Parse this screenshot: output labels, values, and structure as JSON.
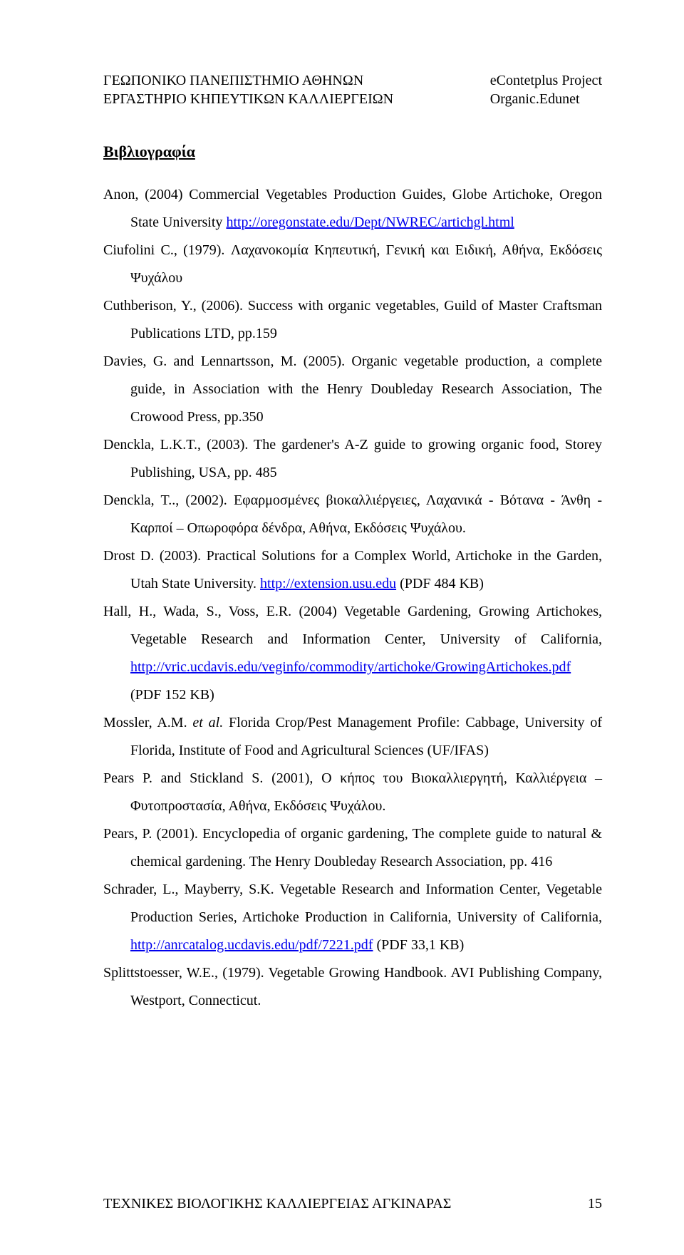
{
  "header": {
    "left1": "ΓΕΩΠΟΝΙΚΟ ΠΑΝΕΠΙΣΤΗΜΙΟ ΑΘΗΝΩΝ",
    "left2": "ΕΡΓΑΣΤΗΡΙΟ ΚΗΠΕΥΤΙΚΩΝ ΚΑΛΛΙΕΡΓΕΙΩΝ",
    "right1": "eContetplus Project",
    "right2": "Organic.Edunet"
  },
  "section_title": "Βιβλιογραφία",
  "refs": {
    "r1a": "Anon, (2004) Commercial Vegetables Production Guides, Globe Artichoke, Oregon State University ",
    "r1_link": "http://oregonstate.edu/Dept/NWREC/artichgl.html",
    "r2": "Ciufolini C., (1979). Λαχανοκομία Κηπευτική, Γενική και Ειδική, Αθήνα, Εκδόσεις Ψυχάλου",
    "r3": "Cuthberison, Y., (2006). Success with organic vegetables, Guild of Master Craftsman Publications LTD, pp.159",
    "r4": "Davies, G. and Lennartsson, M. (2005). Organic vegetable production, a complete guide, in Association with the Henry Doubleday Research Association, The Crowood Press, pp.350",
    "r5": "Denckla, L.K.T., (2003). The gardener's A-Z guide to growing organic food, Storey Publishing, USA, pp. 485",
    "r6": "Denckla, T.., (2002). Εφαρμοσμένες βιοκαλλιέργειες, Λαχανικά - Βότανα - Άνθη - Καρποί – Οπωροφόρα δένδρα, Αθήνα, Εκδόσεις Ψυχάλου.",
    "r7a": "Drost D. (2003). Practical Solutions for a Complex World, Artichoke in the Garden, Utah State University. ",
    "r7_link": "http://extension.usu.edu",
    "r7b": " (PDF 484 ΚΒ)",
    "r8a": "Hall, H., Wada, S., Voss, E.R. (2004) Vegetable Gardening, Growing Artichokes, Vegetable Research and Information Center, University of California, ",
    "r8_link": "http://vric.ucdavis.edu/veginfo/commodity/artichoke/GrowingArtichokes.pdf",
    "r8b": " (PDF 152 ΚΒ)",
    "r9a": "Mossler, A.M. ",
    "r9_it": "et al.",
    "r9b": " Florida Crop/Pest Management Profile: Cabbage, University of Florida, Institute of Food and Agricultural Sciences (UF/IFAS)",
    "r10": "Pears P. and Stickland S. (2001), Ο κήπος του Βιοκαλλιεργητή, Καλλιέργεια – Φυτοπροστασία, Αθήνα, Εκδόσεις Ψυχάλου.",
    "r11": "Pears, P. (2001). Encyclopedia of organic gardening, The complete guide to natural & chemical gardening. The Henry Doubleday Research Association, pp. 416",
    "r12a": "Schrader, L., Mayberry, S.K. Vegetable Research and Information Center, Vegetable Production Series, Artichoke Production in California, University of California, ",
    "r12_link": "http://anrcatalog.ucdavis.edu/pdf/7221.pdf",
    "r12b": " (PDF 33,1 KB)",
    "r13": "Splittstoesser, W.E., (1979). Vegetable Growing Handbook. AVI Publishing Company, Westport, Connecticut."
  },
  "footer": {
    "left": "ΤΕΧΝΙΚΕΣ ΒΙΟΛΟΓΙΚΗΣ ΚΑΛΛΙΕΡΓΕΙΑΣ ΑΓΚΙΝΑΡΑΣ",
    "page_no": "15"
  }
}
